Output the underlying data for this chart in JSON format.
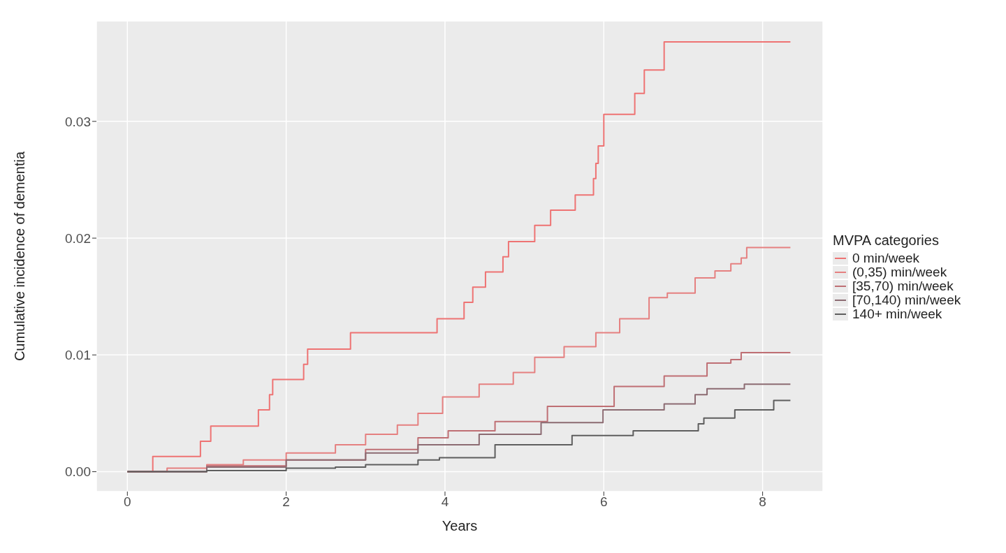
{
  "chart_data": {
    "type": "step",
    "xlabel": "Years",
    "ylabel": "Cumulative incidence of dementia",
    "legend_title": "MVPA categories",
    "xlim": [
      -0.39,
      8.76
    ],
    "xticks": [
      0,
      2,
      4,
      6,
      8
    ],
    "ylim": [
      -0.0017,
      0.0386
    ],
    "yticks": [
      {
        "value": 0,
        "label": "0.00"
      },
      {
        "value": 0.01,
        "label": "0.01"
      },
      {
        "value": 0.02,
        "label": "0.02"
      },
      {
        "value": 0.03,
        "label": "0.03"
      }
    ],
    "grid": true,
    "legend": "right",
    "series": [
      {
        "name": "0 min/week",
        "color": "#ee7373",
        "x": [
          0,
          0.32,
          0.92,
          1.05,
          1.65,
          1.79,
          1.83,
          2.22,
          2.27,
          2.81,
          3.9,
          4.24,
          4.35,
          4.51,
          4.73,
          4.8,
          5.13,
          5.33,
          5.64,
          5.87,
          5.9,
          5.93,
          6.0,
          6.39,
          6.51,
          6.76,
          8.35
        ],
        "values": [
          0,
          0.0013,
          0.0026,
          0.0039,
          0.0053,
          0.0066,
          0.0079,
          0.0092,
          0.0105,
          0.0119,
          0.0131,
          0.0145,
          0.0158,
          0.0171,
          0.0184,
          0.0197,
          0.0211,
          0.0224,
          0.0237,
          0.0251,
          0.0264,
          0.0279,
          0.0306,
          0.0324,
          0.0344,
          0.0368,
          0.0368
        ]
      },
      {
        "name": "(0,35) min/week",
        "color": "#e58080",
        "x": [
          0,
          0.5,
          1.0,
          1.46,
          2.0,
          2.62,
          3.0,
          3.4,
          3.66,
          3.97,
          4.43,
          4.86,
          5.13,
          5.5,
          5.9,
          6.2,
          6.57,
          6.8,
          7.15,
          7.4,
          7.6,
          7.73,
          7.8,
          8.35
        ],
        "values": [
          0,
          0.0003,
          0.0006,
          0.001,
          0.0016,
          0.0023,
          0.0032,
          0.004,
          0.005,
          0.0064,
          0.0075,
          0.0085,
          0.0098,
          0.0107,
          0.0119,
          0.0131,
          0.0149,
          0.0153,
          0.0166,
          0.0172,
          0.0178,
          0.0183,
          0.0192,
          0.0192
        ]
      },
      {
        "name": "[35,70) min/week",
        "color": "#bf6f74",
        "x": [
          0,
          1.0,
          2.0,
          3.0,
          3.66,
          4.04,
          4.63,
          5.29,
          6.13,
          6.76,
          7.3,
          7.6,
          7.73,
          8.35
        ],
        "values": [
          0,
          0.0005,
          0.001,
          0.0019,
          0.0029,
          0.0035,
          0.0043,
          0.0056,
          0.0073,
          0.0082,
          0.0093,
          0.0096,
          0.0102,
          0.0102
        ]
      },
      {
        "name": "[70,140) min/week",
        "color": "#8c6b72",
        "x": [
          0,
          1.0,
          2.0,
          3.0,
          3.66,
          4.43,
          5.21,
          5.99,
          6.76,
          7.15,
          7.3,
          7.77,
          8.35
        ],
        "values": [
          0,
          0.0004,
          0.001,
          0.0016,
          0.0023,
          0.0032,
          0.0042,
          0.0053,
          0.0058,
          0.0066,
          0.0071,
          0.0075,
          0.0075
        ]
      },
      {
        "name": "140+ min/week",
        "color": "#5e5e5e",
        "x": [
          0,
          1.0,
          2.0,
          2.62,
          3.0,
          3.66,
          3.93,
          4.63,
          5.6,
          6.37,
          7.19,
          7.26,
          7.65,
          8.14,
          8.35
        ],
        "values": [
          0,
          0.0001,
          0.0003,
          0.0004,
          0.0006,
          0.001,
          0.0012,
          0.0023,
          0.0031,
          0.0035,
          0.0041,
          0.0046,
          0.0053,
          0.0061,
          0.0061
        ]
      }
    ]
  }
}
